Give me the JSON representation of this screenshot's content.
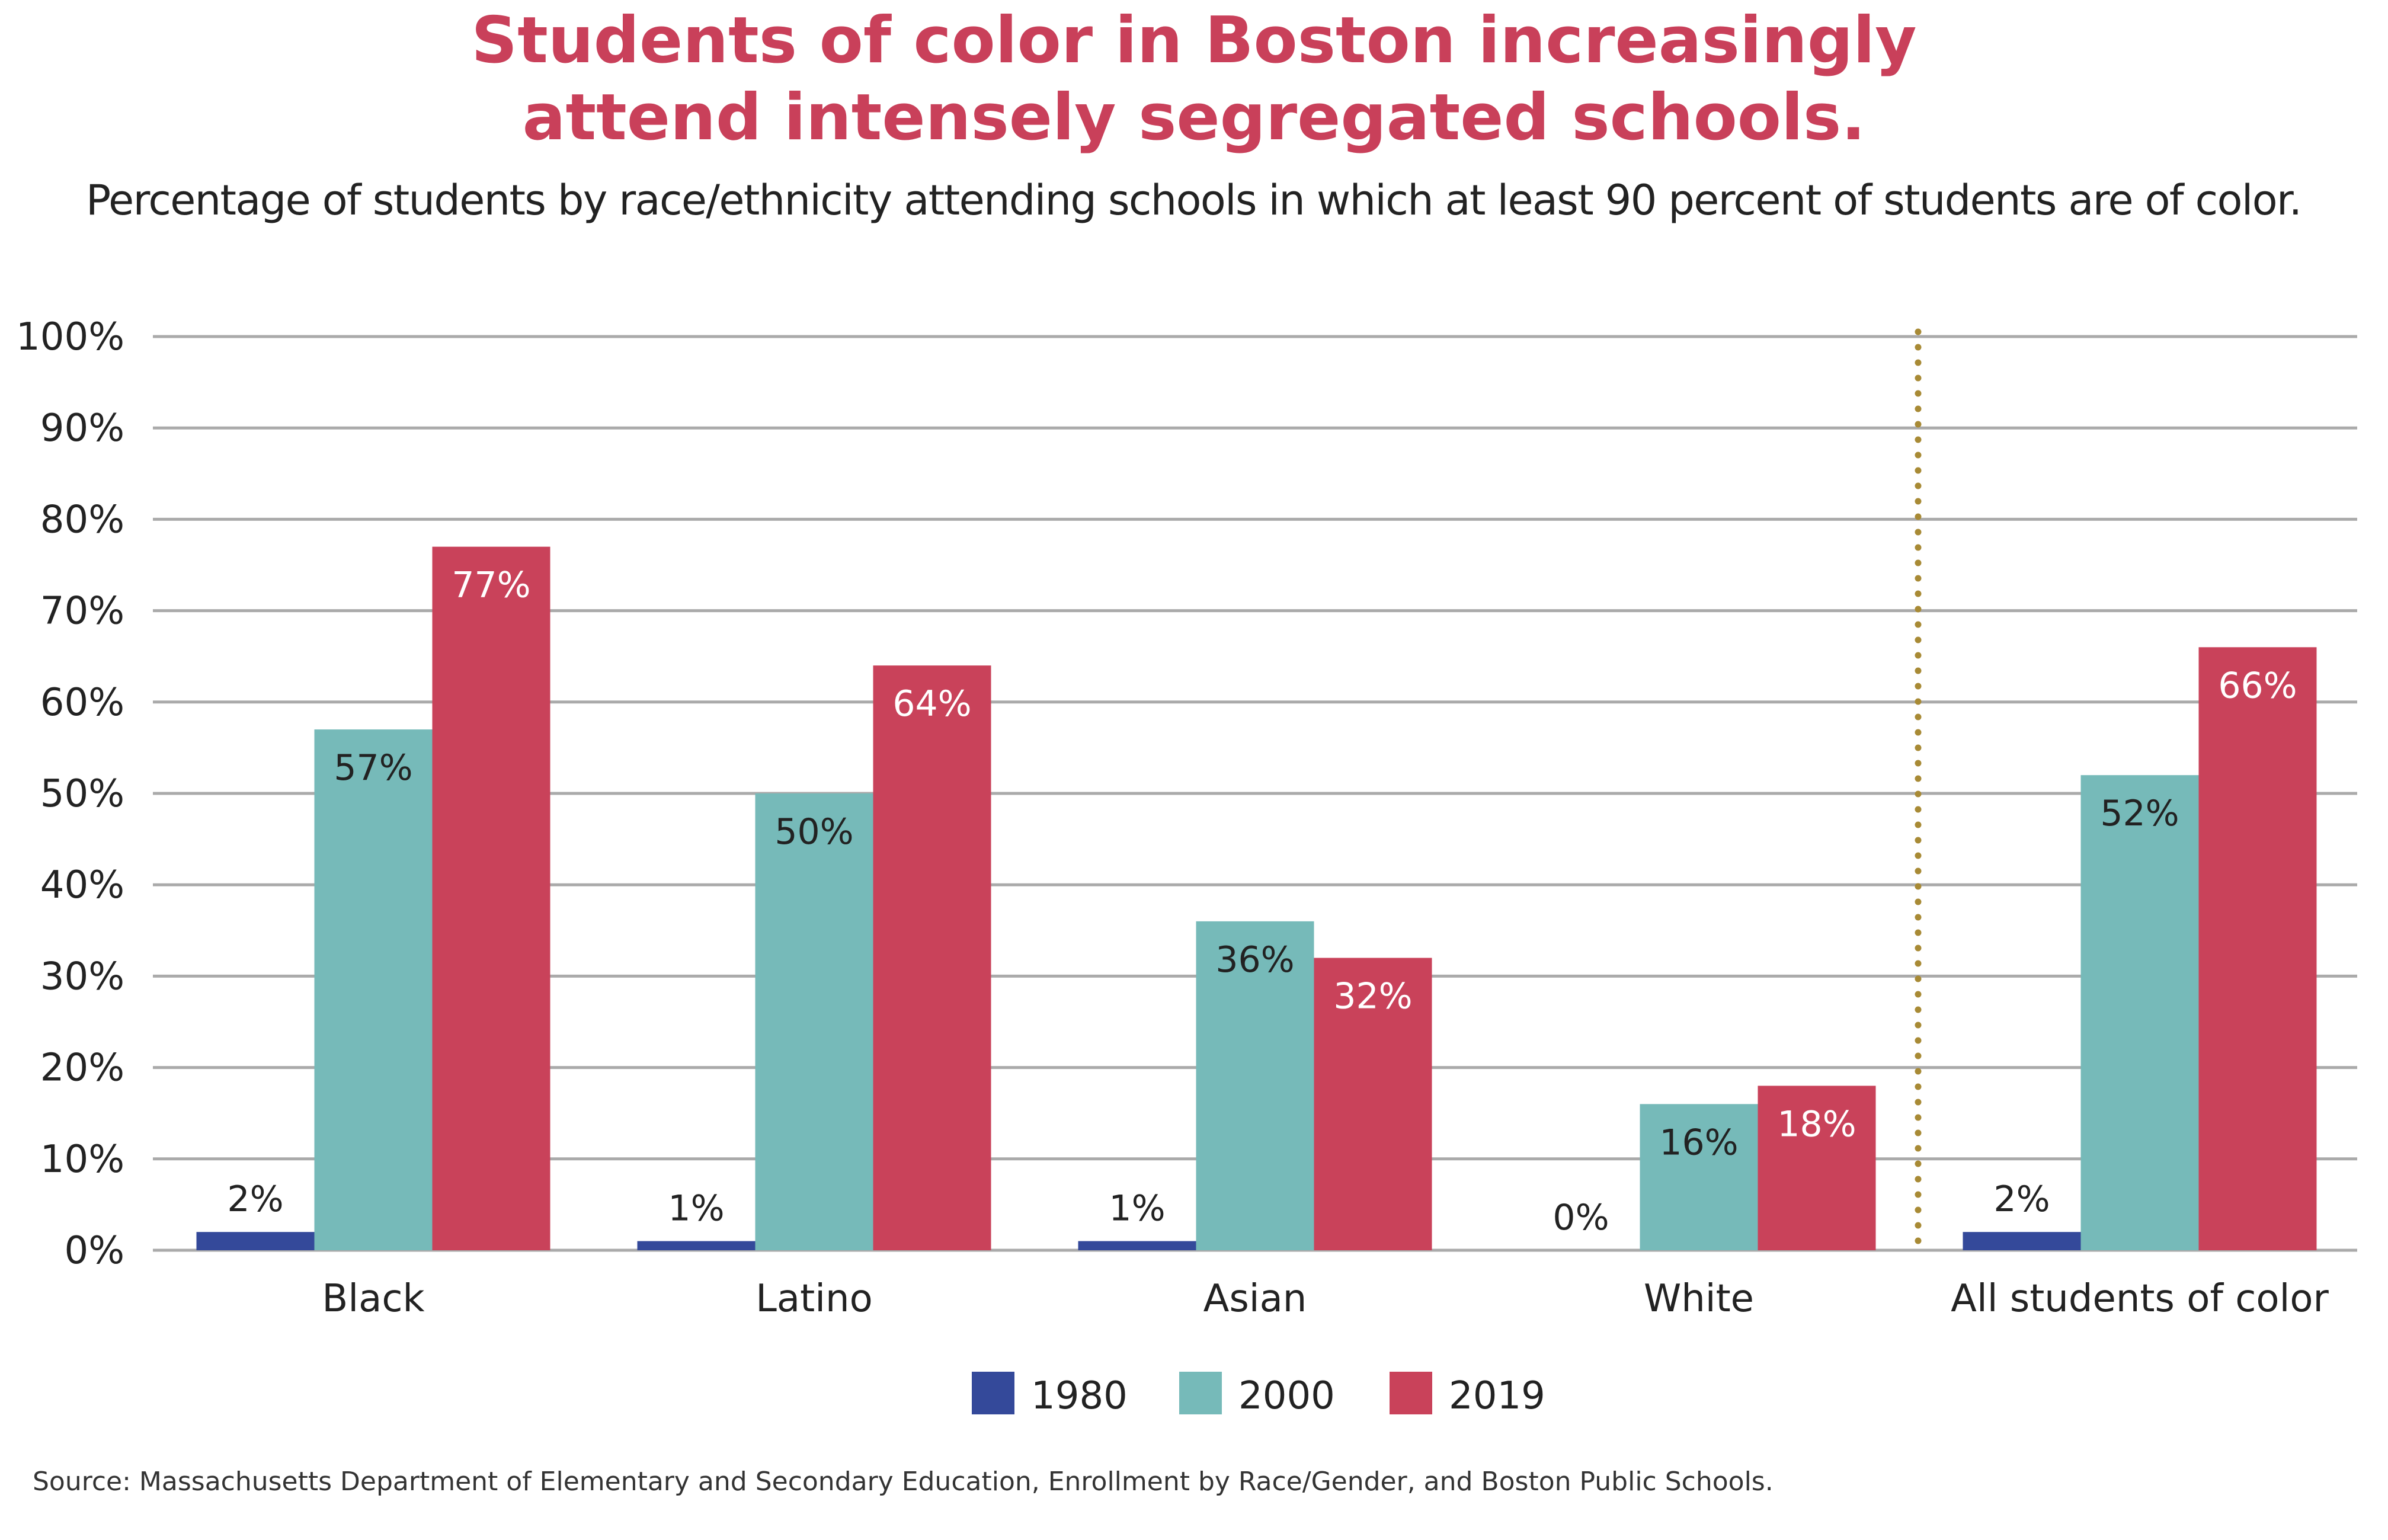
{
  "chart_data": {
    "type": "bar",
    "title_lines": [
      "Students of color in Boston increasingly",
      "attend intensely segregated schools."
    ],
    "subtitle": "Percentage of students by race/ethnicity attending schools in which at least 90 percent of students are of color.",
    "categories": [
      "Black",
      "Latino",
      "Asian",
      "White",
      "All students of color"
    ],
    "series": [
      {
        "name": "1980",
        "color": "#34499a",
        "values": [
          2,
          1,
          1,
          0,
          2
        ],
        "labels": [
          "2%",
          "1%",
          "1%",
          "0%",
          "2%"
        ]
      },
      {
        "name": "2000",
        "color": "#76bab9",
        "values": [
          57,
          50,
          36,
          16,
          52
        ],
        "labels": [
          "57%",
          "50%",
          "36%",
          "16%",
          "52%"
        ]
      },
      {
        "name": "2019",
        "color": "#c9425a",
        "values": [
          77,
          64,
          32,
          18,
          66
        ],
        "labels": [
          "77%",
          "64%",
          "32%",
          "18%",
          "66%"
        ]
      }
    ],
    "ylim": [
      0,
      100
    ],
    "yticks": [
      "0%",
      "10%",
      "20%",
      "30%",
      "40%",
      "50%",
      "60%",
      "70%",
      "80%",
      "90%",
      "100%"
    ],
    "grid": true,
    "legend_placement": "bottom-center",
    "separator": {
      "style": "dotted",
      "color": "#a88a35",
      "between": [
        "White",
        "All students of color"
      ]
    },
    "title_color": "#c9405a",
    "source": "Source: Massachusetts Department of Elementary and Secondary Education, Enrollment by Race/Gender, and Boston Public Schools."
  }
}
